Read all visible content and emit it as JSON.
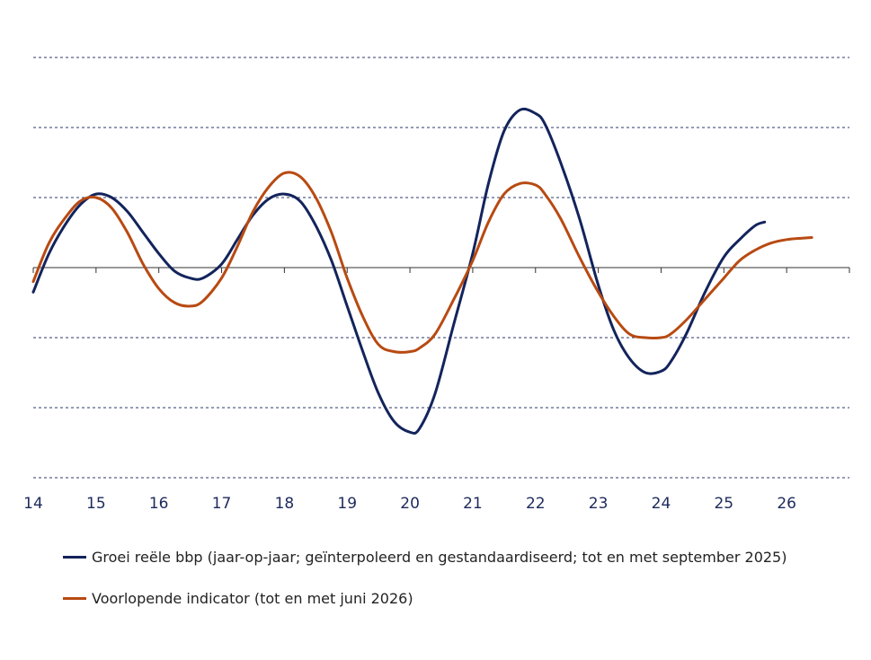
{
  "chart_data": {
    "type": "line",
    "xlim": [
      14,
      27
    ],
    "ylim": [
      -3,
      3
    ],
    "yticks": [
      -3,
      -2,
      -1,
      0,
      1,
      2,
      3
    ],
    "xticks": [
      "14",
      "15",
      "16",
      "17",
      "18",
      "19",
      "20",
      "21",
      "22",
      "23",
      "24",
      "25",
      "26"
    ],
    "grid": true,
    "legend_position": "bottom-left",
    "series": [
      {
        "name": "Groei reële bbp (jaar-op-jaar; geïnterpoleerd en gestandaardiseerd; tot en met september 2025)",
        "color": "#13245c",
        "x": [
          14.0,
          14.25,
          14.5,
          14.75,
          15.0,
          15.25,
          15.5,
          15.75,
          16.0,
          16.25,
          16.5,
          16.7,
          17.0,
          17.25,
          17.5,
          17.75,
          18.0,
          18.25,
          18.5,
          18.75,
          19.0,
          19.25,
          19.5,
          19.75,
          20.0,
          20.15,
          20.4,
          20.7,
          21.0,
          21.25,
          21.5,
          21.75,
          22.0,
          22.15,
          22.4,
          22.7,
          23.0,
          23.25,
          23.5,
          23.75,
          24.0,
          24.15,
          24.4,
          24.7,
          25.0,
          25.25,
          25.5,
          25.65
        ],
        "y": [
          -0.35,
          0.2,
          0.6,
          0.9,
          1.05,
          1.0,
          0.8,
          0.5,
          0.2,
          -0.05,
          -0.15,
          -0.15,
          0.05,
          0.4,
          0.75,
          0.98,
          1.05,
          0.95,
          0.6,
          0.1,
          -0.55,
          -1.2,
          -1.8,
          -2.2,
          -2.35,
          -2.3,
          -1.8,
          -0.8,
          0.2,
          1.2,
          1.95,
          2.25,
          2.2,
          2.05,
          1.5,
          0.7,
          -0.25,
          -0.9,
          -1.3,
          -1.5,
          -1.48,
          -1.35,
          -0.95,
          -0.35,
          0.15,
          0.4,
          0.6,
          0.65
        ]
      },
      {
        "name": "Voorlopende indicator (tot en met juni 2026)",
        "color": "#b84a12",
        "x": [
          14.0,
          14.25,
          14.5,
          14.75,
          15.0,
          15.25,
          15.5,
          15.75,
          16.0,
          16.25,
          16.5,
          16.7,
          17.0,
          17.25,
          17.5,
          17.75,
          18.0,
          18.25,
          18.5,
          18.75,
          19.0,
          19.25,
          19.5,
          19.75,
          20.0,
          20.15,
          20.4,
          20.7,
          21.0,
          21.25,
          21.5,
          21.75,
          22.0,
          22.15,
          22.4,
          22.7,
          23.0,
          23.25,
          23.5,
          23.75,
          24.0,
          24.15,
          24.4,
          24.7,
          25.0,
          25.25,
          25.5,
          25.75,
          26.0,
          26.25,
          26.4
        ],
        "y": [
          -0.2,
          0.35,
          0.7,
          0.95,
          1.0,
          0.85,
          0.5,
          0.05,
          -0.3,
          -0.5,
          -0.55,
          -0.48,
          -0.15,
          0.3,
          0.8,
          1.15,
          1.35,
          1.3,
          1.0,
          0.5,
          -0.15,
          -0.7,
          -1.1,
          -1.2,
          -1.2,
          -1.15,
          -0.95,
          -0.45,
          0.1,
          0.65,
          1.05,
          1.2,
          1.18,
          1.05,
          0.7,
          0.15,
          -0.35,
          -0.7,
          -0.95,
          -1.0,
          -1.0,
          -0.95,
          -0.75,
          -0.45,
          -0.15,
          0.1,
          0.25,
          0.35,
          0.4,
          0.42,
          0.43
        ]
      }
    ]
  }
}
